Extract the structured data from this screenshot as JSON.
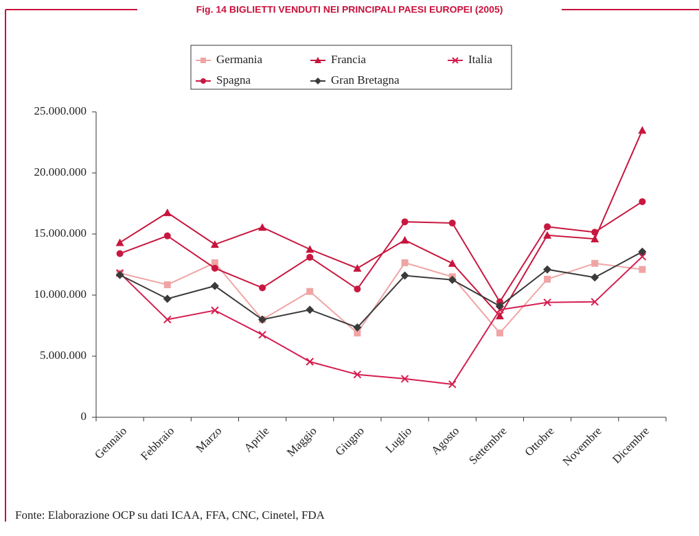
{
  "chart_data": {
    "type": "line",
    "title": "Fig. 14 BIGLIETTI VENDUTI NEI PRINCIPALI PAESI EUROPEI (2005)",
    "categories": [
      "Gennaio",
      "Febbraio",
      "Marzo",
      "Aprile",
      "Maggio",
      "Giugno",
      "Luglio",
      "Agosto",
      "Settembre",
      "Ottobre",
      "Novembre",
      "Dicembre"
    ],
    "series": [
      {
        "name": "Germania",
        "color": "#f0a4a4",
        "marker": "square",
        "values": [
          11800000,
          10850000,
          12650000,
          8000000,
          10300000,
          6900000,
          12650000,
          11500000,
          6900000,
          11300000,
          12600000,
          12100000
        ]
      },
      {
        "name": "Francia",
        "color": "#c8143c",
        "marker": "triangle",
        "values": [
          14300000,
          16750000,
          14150000,
          15550000,
          13750000,
          12200000,
          14500000,
          12600000,
          8300000,
          14900000,
          14600000,
          23500000
        ]
      },
      {
        "name": "Italia",
        "color": "#d41e50",
        "marker": "x",
        "values": [
          11800000,
          8000000,
          8750000,
          6750000,
          4550000,
          3500000,
          3150000,
          2700000,
          8800000,
          9400000,
          9450000,
          13150000
        ]
      },
      {
        "name": "Spagna",
        "color": "#c81840",
        "marker": "circle",
        "values": [
          13400000,
          14850000,
          12200000,
          10600000,
          13100000,
          10500000,
          16000000,
          15900000,
          9450000,
          15600000,
          15150000,
          17650000
        ]
      },
      {
        "name": "Gran Bretagna",
        "color": "#3a3a3a",
        "marker": "diamond",
        "values": [
          11650000,
          9700000,
          10750000,
          8000000,
          8800000,
          7350000,
          11600000,
          11250000,
          9100000,
          12100000,
          11450000,
          13550000
        ]
      }
    ],
    "ylim": [
      0,
      25000000
    ],
    "yticks": [
      0,
      {
        "value": 5000000,
        "label": "5.000.000"
      },
      {
        "value": 10000000,
        "label": "10.000.000"
      },
      {
        "value": 15000000,
        "label": "15.000.000"
      },
      {
        "value": 20000000,
        "label": "20.000.000"
      },
      {
        "value": 25000000,
        "label": "25.000.000"
      }
    ],
    "source": "Fonte: Elaborazione OCP su dati ICAA, FFA, CNC, Cinetel, FDA"
  }
}
